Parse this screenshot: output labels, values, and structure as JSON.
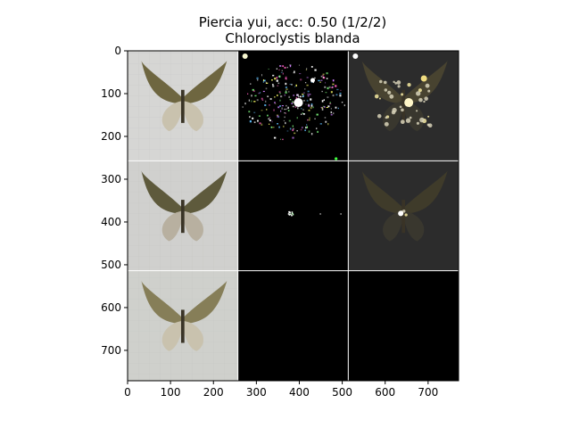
{
  "chart_data": {
    "type": "image-grid",
    "title": "Piercia yui, acc: 0.50 (1/2/2)",
    "subtitle": "Chloroclystis blanda",
    "xlim": [
      0,
      771
    ],
    "ylim": [
      0,
      771
    ],
    "x_ticks": [
      0,
      100,
      200,
      300,
      400,
      500,
      600,
      700
    ],
    "y_ticks": [
      0,
      100,
      200,
      300,
      400,
      500,
      600,
      700
    ],
    "grid": {
      "rows": 3,
      "cols": 3,
      "cell_size": 257
    },
    "panels": [
      {
        "row": 0,
        "col": 0,
        "kind": "photo",
        "background": "#d6d6d4",
        "moth_color": "#6e6640"
      },
      {
        "row": 0,
        "col": 1,
        "kind": "saliency",
        "background": "#000000",
        "noise": "dense"
      },
      {
        "row": 0,
        "col": 2,
        "kind": "overlay",
        "background": "#2c2c2c",
        "moth_color": "#4a4530"
      },
      {
        "row": 1,
        "col": 0,
        "kind": "photo",
        "background": "#d0d0ce",
        "moth_color": "#5e5a3c"
      },
      {
        "row": 1,
        "col": 1,
        "kind": "saliency",
        "background": "#000000",
        "noise": "sparse"
      },
      {
        "row": 1,
        "col": 2,
        "kind": "overlay",
        "background": "#2c2c2c",
        "moth_color": "#403c2a"
      },
      {
        "row": 2,
        "col": 0,
        "kind": "photo",
        "background": "#cfd0cc",
        "moth_color": "#867e58"
      },
      {
        "row": 2,
        "col": 1,
        "kind": "blank",
        "background": "#000000"
      },
      {
        "row": 2,
        "col": 2,
        "kind": "blank",
        "background": "#000000"
      }
    ]
  }
}
